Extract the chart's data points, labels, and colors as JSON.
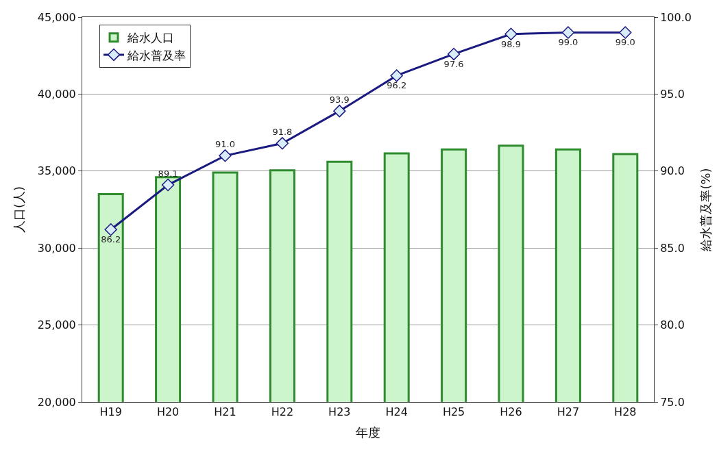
{
  "chart_data": {
    "type": "bar",
    "xlabel": "年度",
    "ylabel": "人口(人)",
    "y2label": "給水普及率(%)",
    "categories": [
      "H19",
      "H20",
      "H21",
      "H22",
      "H23",
      "H24",
      "H25",
      "H26",
      "H27",
      "H28"
    ],
    "series": [
      {
        "name": "給水人口",
        "color": "#ccf5cc",
        "values": [
          33500,
          34600,
          34900,
          35050,
          35600,
          36150,
          36400,
          36650,
          36400,
          36100
        ]
      },
      {
        "name": "給水普及率",
        "type": "line",
        "axis": "y2",
        "color": "#1a1a80",
        "marker": "diamond",
        "values": [
          86.2,
          89.1,
          91.0,
          91.8,
          93.9,
          96.2,
          97.6,
          98.9,
          99.0,
          99.0
        ],
        "value_labels": [
          "86.2",
          "89.1",
          "91.0",
          "91.8",
          "93.9",
          "96.2",
          "97.6",
          "98.9",
          "99.0",
          "99.0"
        ]
      }
    ],
    "ylim": [
      20000,
      45000
    ],
    "yticks": [
      {
        "value": 20000,
        "label": "20,000"
      },
      {
        "value": 25000,
        "label": "25,000"
      },
      {
        "value": 30000,
        "label": "30,000"
      },
      {
        "value": 35000,
        "label": "35,000"
      },
      {
        "value": 40000,
        "label": "40,000"
      },
      {
        "value": 45000,
        "label": "45,000"
      }
    ],
    "y2lim": [
      75,
      100
    ],
    "y2ticks": [
      {
        "value": 75,
        "label": "75.0"
      },
      {
        "value": 80,
        "label": "80.0"
      },
      {
        "value": 85,
        "label": "85.0"
      },
      {
        "value": 90,
        "label": "90.0"
      },
      {
        "value": 95,
        "label": "95.0"
      },
      {
        "value": 100,
        "label": "100.0"
      }
    ],
    "grid": "y",
    "legend": "top left"
  }
}
